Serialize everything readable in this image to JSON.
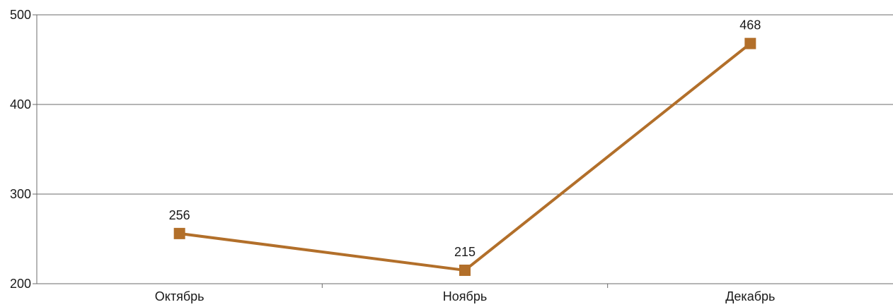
{
  "chart_data": {
    "type": "line",
    "title": "",
    "xlabel": "",
    "ylabel": "",
    "categories": [
      "Октябрь",
      "Ноябрь",
      "Декабрь"
    ],
    "series": [
      {
        "values": [
          256,
          215,
          468
        ],
        "color": "#b26f2a",
        "marker": "square",
        "data_labels": [
          "256",
          "215",
          "468"
        ]
      }
    ],
    "ylim": [
      200,
      500
    ],
    "yticks": [
      200,
      300,
      400,
      500
    ],
    "ytick_labels": [
      "200",
      "300",
      "400",
      "500"
    ],
    "grid": true,
    "legend": "none"
  },
  "colors": {
    "series_line": "#b26f2a",
    "grid": "#6b6b6b",
    "background": "#ffffff"
  }
}
